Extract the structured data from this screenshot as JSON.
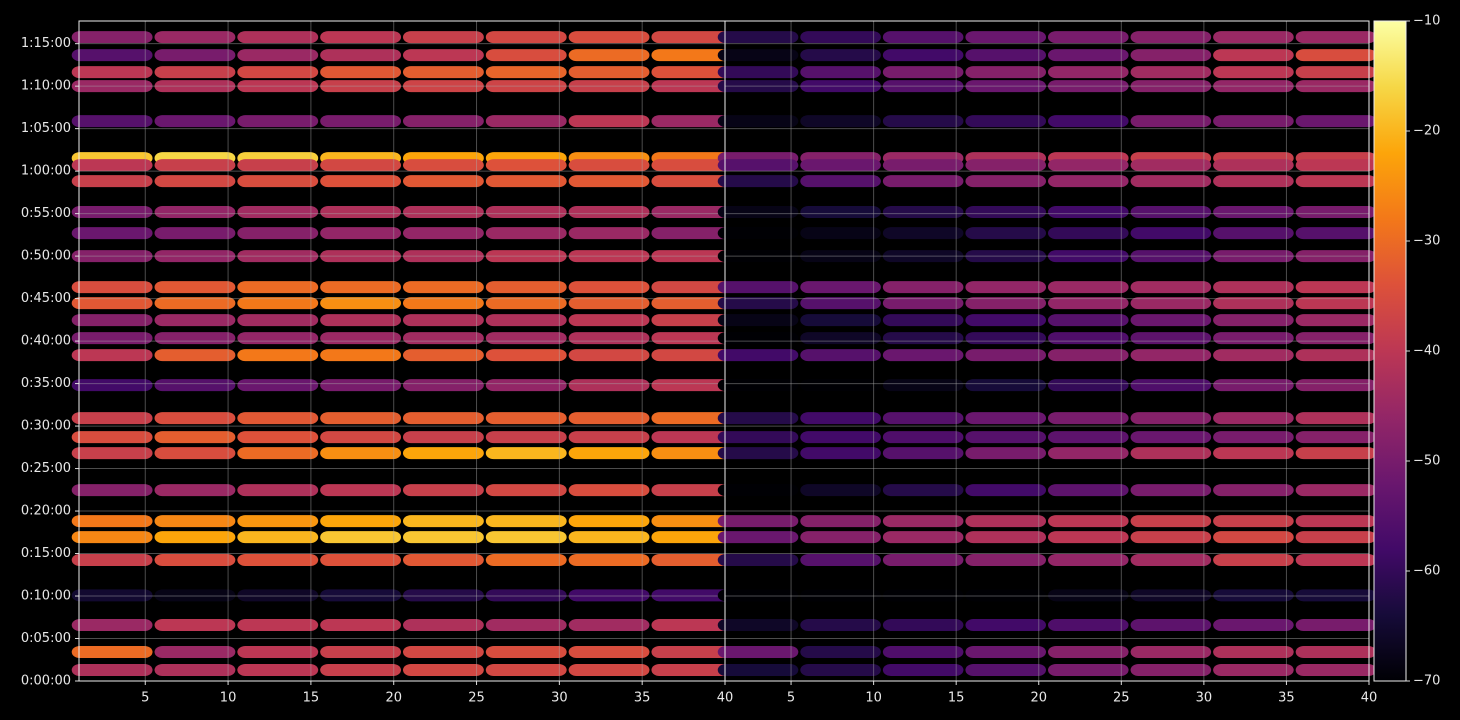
{
  "chart_data": [
    {
      "type": "heatmap",
      "colormap": "inferno",
      "clim": [
        -70,
        -10
      ],
      "grid": true,
      "xlim": [
        1,
        40
      ],
      "xticks": [
        5,
        10,
        15,
        20,
        25,
        30,
        35,
        40
      ],
      "ylim": [
        0,
        4660
      ],
      "yticks": [
        {
          "value": 0,
          "label": "0:00:00"
        },
        {
          "value": 300,
          "label": "0:05:00"
        },
        {
          "value": 600,
          "label": "0:10:00"
        },
        {
          "value": 900,
          "label": "0:15:00"
        },
        {
          "value": 1200,
          "label": "0:20:00"
        },
        {
          "value": 1500,
          "label": "0:25:00"
        },
        {
          "value": 1800,
          "label": "0:30:00"
        },
        {
          "value": 2100,
          "label": "0:35:00"
        },
        {
          "value": 2400,
          "label": "0:40:00"
        },
        {
          "value": 2700,
          "label": "0:45:00"
        },
        {
          "value": 3000,
          "label": "0:50:00"
        },
        {
          "value": 3300,
          "label": "0:55:00"
        },
        {
          "value": 3600,
          "label": "1:00:00"
        },
        {
          "value": 3900,
          "label": "1:05:00"
        },
        {
          "value": 4200,
          "label": "1:10:00"
        },
        {
          "value": 4500,
          "label": "1:15:00"
        }
      ],
      "x": [
        3,
        8,
        13,
        18,
        23,
        28,
        33,
        38
      ],
      "y": [
        4546,
        4419,
        4299,
        4200,
        3953,
        3692,
        3642,
        3529,
        3311,
        3162,
        3000,
        2781,
        2668,
        2548,
        2421,
        2301,
        2089,
        1856,
        1722,
        1609,
        1348,
        1129,
        1016,
        854,
        605,
        395,
        205,
        78
      ],
      "values": [
        [
          -48,
          -45,
          -42,
          -40,
          -38,
          -36,
          -35,
          -36
        ],
        [
          -55,
          -50,
          -45,
          -42,
          -40,
          -35,
          -30,
          -28
        ],
        [
          -40,
          -38,
          -36,
          -33,
          -32,
          -31,
          -32,
          -34
        ],
        [
          -45,
          -42,
          -40,
          -38,
          -37,
          -37,
          -38,
          -40
        ],
        [
          -55,
          -52,
          -50,
          -50,
          -48,
          -45,
          -40,
          -45
        ],
        [
          -18,
          -16,
          -17,
          -20,
          -22,
          -22,
          -25,
          -28
        ],
        [
          -40,
          -38,
          -38,
          -36,
          -35,
          -34,
          -35,
          -35
        ],
        [
          -38,
          -36,
          -35,
          -34,
          -33,
          -33,
          -33,
          -35
        ],
        [
          -50,
          -46,
          -44,
          -42,
          -42,
          -42,
          -42,
          -45
        ],
        [
          -52,
          -50,
          -48,
          -46,
          -46,
          -45,
          -45,
          -48
        ],
        [
          -48,
          -46,
          -44,
          -42,
          -42,
          -40,
          -40,
          -40
        ],
        [
          -35,
          -33,
          -30,
          -30,
          -30,
          -32,
          -34,
          -36
        ],
        [
          -33,
          -30,
          -28,
          -25,
          -28,
          -30,
          -32,
          -32
        ],
        [
          -48,
          -45,
          -44,
          -42,
          -42,
          -42,
          -40,
          -38
        ],
        [
          -50,
          -48,
          -46,
          -45,
          -44,
          -44,
          -42,
          -40
        ],
        [
          -40,
          -32,
          -28,
          -28,
          -32,
          -34,
          -36,
          -36
        ],
        [
          -58,
          -55,
          -52,
          -50,
          -48,
          -46,
          -42,
          -40
        ],
        [
          -38,
          -35,
          -33,
          -32,
          -32,
          -32,
          -32,
          -30
        ],
        [
          -35,
          -32,
          -34,
          -36,
          -38,
          -38,
          -38,
          -40
        ],
        [
          -38,
          -35,
          -30,
          -25,
          -22,
          -20,
          -22,
          -25
        ],
        [
          -48,
          -45,
          -42,
          -40,
          -38,
          -36,
          -35,
          -38
        ],
        [
          -28,
          -26,
          -24,
          -22,
          -20,
          -20,
          -22,
          -25
        ],
        [
          -26,
          -22,
          -20,
          -18,
          -18,
          -18,
          -20,
          -22
        ],
        [
          -38,
          -35,
          -34,
          -34,
          -33,
          -30,
          -30,
          -32
        ],
        [
          -65,
          -68,
          -66,
          -64,
          -62,
          -60,
          -58,
          -58
        ],
        [
          -45,
          -40,
          -40,
          -40,
          -42,
          -44,
          -44,
          -40
        ],
        [
          -30,
          -45,
          -40,
          -38,
          -36,
          -35,
          -35,
          -38
        ],
        [
          -42,
          -42,
          -40,
          -38,
          -36,
          -36,
          -36,
          -38
        ]
      ]
    },
    {
      "type": "heatmap",
      "colormap": "inferno",
      "clim": [
        -70,
        -10
      ],
      "grid": true,
      "xlim": [
        1,
        40
      ],
      "xticks": [
        5,
        10,
        15,
        20,
        25,
        30,
        35,
        40
      ],
      "ylim": [
        0,
        4660
      ],
      "yticks": [
        0,
        300,
        600,
        900,
        1200,
        1500,
        1800,
        2100,
        2400,
        2700,
        3000,
        3300,
        3600,
        3900,
        4200,
        4500
      ],
      "x": [
        3,
        8,
        13,
        18,
        23,
        28,
        33,
        38
      ],
      "y": [
        4546,
        4419,
        4299,
        4200,
        3953,
        3692,
        3642,
        3529,
        3311,
        3162,
        3000,
        2781,
        2668,
        2548,
        2421,
        2301,
        2089,
        1856,
        1722,
        1609,
        1348,
        1129,
        1016,
        854,
        605,
        395,
        205,
        78
      ],
      "values": [
        [
          -62,
          -60,
          -55,
          -52,
          -50,
          -48,
          -45,
          -45
        ],
        [
          -68,
          -62,
          -58,
          -55,
          -52,
          -48,
          -40,
          -35
        ],
        [
          -60,
          -55,
          -50,
          -48,
          -46,
          -44,
          -40,
          -38
        ],
        [
          -62,
          -58,
          -55,
          -52,
          -50,
          -48,
          -46,
          -45
        ],
        [
          -68,
          -66,
          -62,
          -60,
          -58,
          -50,
          -50,
          -52
        ],
        [
          -50,
          -48,
          -45,
          -42,
          -40,
          -38,
          -38,
          -38
        ],
        [
          -55,
          -52,
          -50,
          -48,
          -46,
          -44,
          -42,
          -40
        ],
        [
          -62,
          -55,
          -50,
          -48,
          -46,
          -44,
          -42,
          -40
        ],
        [
          -68,
          -64,
          -62,
          -60,
          -58,
          -55,
          -52,
          -50
        ],
        [
          -70,
          -68,
          -66,
          -62,
          -60,
          -58,
          -55,
          -55
        ],
        [
          -70,
          -68,
          -66,
          -62,
          -58,
          -55,
          -50,
          -48
        ],
        [
          -55,
          -52,
          -48,
          -46,
          -45,
          -44,
          -42,
          -40
        ],
        [
          -62,
          -55,
          -50,
          -48,
          -46,
          -45,
          -42,
          -40
        ],
        [
          -68,
          -64,
          -60,
          -58,
          -55,
          -52,
          -48,
          -45
        ],
        [
          -70,
          -66,
          -62,
          -60,
          -56,
          -54,
          -50,
          -48
        ],
        [
          -58,
          -55,
          -52,
          -50,
          -48,
          -46,
          -44,
          -42
        ],
        [
          -70,
          -70,
          -68,
          -64,
          -60,
          -56,
          -50,
          -48
        ],
        [
          -62,
          -58,
          -55,
          -52,
          -50,
          -48,
          -45,
          -42
        ],
        [
          -60,
          -58,
          -56,
          -55,
          -54,
          -52,
          -50,
          -48
        ],
        [
          -62,
          -58,
          -55,
          -50,
          -46,
          -42,
          -40,
          -38
        ],
        [
          -70,
          -66,
          -62,
          -58,
          -54,
          -50,
          -48,
          -45
        ],
        [
          -50,
          -48,
          -45,
          -42,
          -40,
          -38,
          -38,
          -40
        ],
        [
          -52,
          -48,
          -45,
          -42,
          -40,
          -38,
          -36,
          -38
        ],
        [
          -62,
          -55,
          -50,
          -48,
          -46,
          -44,
          -38,
          -40
        ],
        [
          -70,
          -70,
          -70,
          -70,
          -68,
          -66,
          -64,
          -64
        ],
        [
          -66,
          -62,
          -60,
          -58,
          -56,
          -54,
          -52,
          -50
        ],
        [
          -52,
          -62,
          -56,
          -52,
          -48,
          -45,
          -42,
          -42
        ],
        [
          -64,
          -62,
          -58,
          -55,
          -50,
          -48,
          -45,
          -45
        ]
      ],
      "colorbar": {
        "ticks": [
          {
            "value": -10,
            "label": "−10"
          },
          {
            "value": -20,
            "label": "−20"
          },
          {
            "value": -30,
            "label": "−30"
          },
          {
            "value": -40,
            "label": "−40"
          },
          {
            "value": -50,
            "label": "−50"
          },
          {
            "value": -60,
            "label": "−60"
          },
          {
            "value": -70,
            "label": "−70"
          }
        ]
      }
    }
  ]
}
